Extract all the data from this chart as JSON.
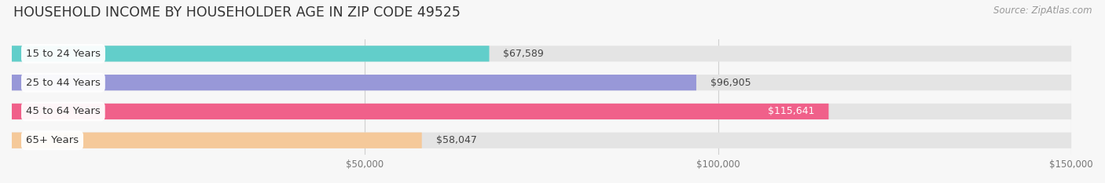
{
  "title": "HOUSEHOLD INCOME BY HOUSEHOLDER AGE IN ZIP CODE 49525",
  "source": "Source: ZipAtlas.com",
  "categories": [
    "15 to 24 Years",
    "25 to 44 Years",
    "45 to 64 Years",
    "65+ Years"
  ],
  "values": [
    67589,
    96905,
    115641,
    58047
  ],
  "bar_colors": [
    "#62ceca",
    "#9898d8",
    "#f0608a",
    "#f5c99a"
  ],
  "label_colors": [
    "#444444",
    "#444444",
    "#ffffff",
    "#444444"
  ],
  "value_labels": [
    "$67,589",
    "$96,905",
    "$115,641",
    "$58,047"
  ],
  "xlim": [
    0,
    150000
  ],
  "xticks": [
    50000,
    100000,
    150000
  ],
  "xtick_labels": [
    "$50,000",
    "$100,000",
    "$150,000"
  ],
  "background_color": "#f7f7f7",
  "bar_bg_color": "#e4e4e4",
  "title_fontsize": 12.5,
  "source_fontsize": 8.5,
  "label_fontsize": 9.5,
  "value_fontsize": 9,
  "bar_height": 0.55
}
